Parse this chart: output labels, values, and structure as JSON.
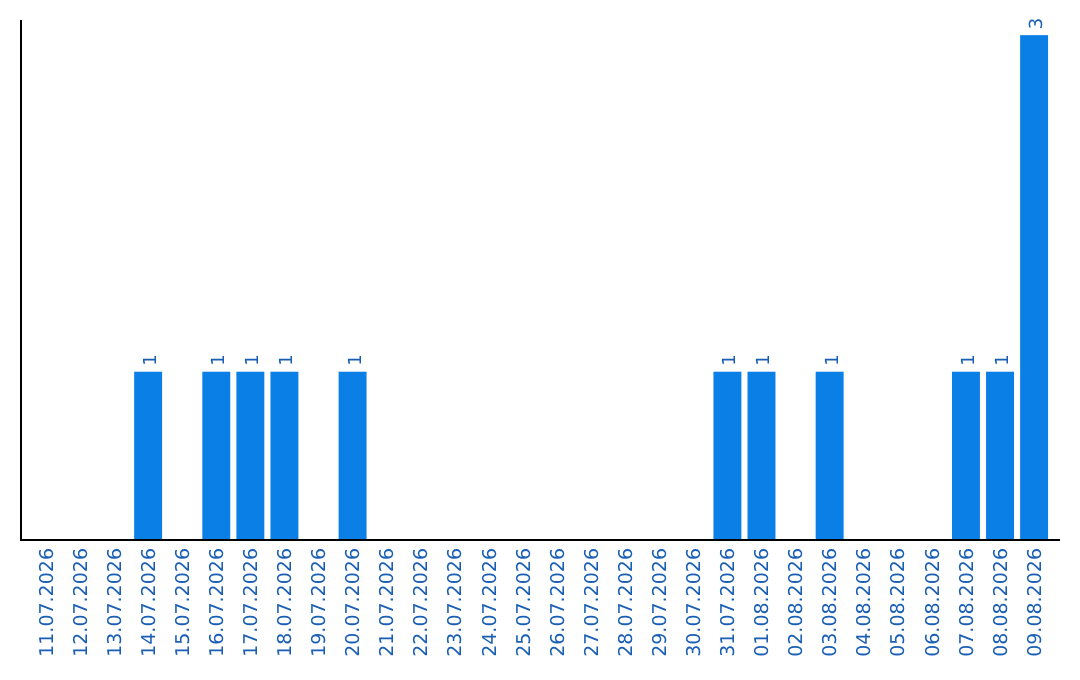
{
  "chart_data": {
    "type": "bar",
    "categories": [
      "11.07.2026",
      "12.07.2026",
      "13.07.2026",
      "14.07.2026",
      "15.07.2026",
      "16.07.2026",
      "17.07.2026",
      "18.07.2026",
      "19.07.2026",
      "20.07.2026",
      "21.07.2026",
      "22.07.2026",
      "23.07.2026",
      "24.07.2026",
      "25.07.2026",
      "26.07.2026",
      "27.07.2026",
      "28.07.2026",
      "29.07.2026",
      "30.07.2026",
      "31.07.2026",
      "01.08.2026",
      "02.08.2026",
      "03.08.2026",
      "04.08.2026",
      "05.08.2026",
      "06.08.2026",
      "07.08.2026",
      "08.08.2026",
      "09.08.2026"
    ],
    "values": [
      0,
      0,
      0,
      1,
      0,
      1,
      1,
      1,
      0,
      1,
      0,
      0,
      0,
      0,
      0,
      0,
      0,
      0,
      0,
      0,
      1,
      1,
      0,
      1,
      0,
      0,
      0,
      1,
      1,
      3
    ],
    "value_labels": [
      null,
      null,
      null,
      "1",
      null,
      "1",
      "1",
      "1",
      null,
      "1",
      null,
      null,
      null,
      null,
      null,
      null,
      null,
      null,
      null,
      null,
      "1",
      "1",
      null,
      "1",
      null,
      null,
      null,
      "1",
      "1",
      "3"
    ],
    "color": "#0a7fe6",
    "grid": false
  }
}
